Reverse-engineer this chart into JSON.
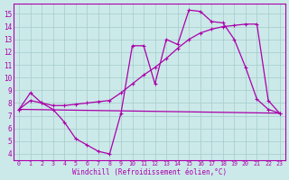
{
  "background_color": "#cce9e9",
  "grid_color": "#aacfcf",
  "line_color": "#aa00aa",
  "xlim": [
    -0.5,
    23.5
  ],
  "ylim": [
    3.5,
    15.8
  ],
  "xticks": [
    0,
    1,
    2,
    3,
    4,
    5,
    6,
    7,
    8,
    9,
    10,
    11,
    12,
    13,
    14,
    15,
    16,
    17,
    18,
    19,
    20,
    21,
    22,
    23
  ],
  "yticks": [
    4,
    5,
    6,
    7,
    8,
    9,
    10,
    11,
    12,
    13,
    14,
    15
  ],
  "xlabel": "Windchill (Refroidissement éolien,°C)",
  "series_wavy": [
    [
      0,
      7.5
    ],
    [
      1,
      8.8
    ],
    [
      2,
      8.0
    ],
    [
      3,
      7.5
    ],
    [
      4,
      6.5
    ],
    [
      5,
      5.2
    ],
    [
      6,
      4.7
    ],
    [
      7,
      4.2
    ],
    [
      8,
      4.0
    ],
    [
      9,
      7.2
    ],
    [
      10,
      12.5
    ],
    [
      11,
      12.5
    ],
    [
      12,
      9.5
    ],
    [
      13,
      13.0
    ],
    [
      14,
      12.6
    ],
    [
      15,
      15.3
    ],
    [
      16,
      15.2
    ],
    [
      17,
      14.4
    ],
    [
      18,
      14.3
    ],
    [
      19,
      13.0
    ],
    [
      20,
      10.8
    ],
    [
      21,
      8.3
    ],
    [
      22,
      7.5
    ],
    [
      23,
      7.2
    ]
  ],
  "series_mid": [
    [
      0,
      7.5
    ],
    [
      1,
      8.2
    ],
    [
      2,
      8.0
    ],
    [
      3,
      7.8
    ],
    [
      4,
      7.8
    ],
    [
      5,
      7.9
    ],
    [
      6,
      8.0
    ],
    [
      7,
      8.1
    ],
    [
      8,
      8.2
    ],
    [
      9,
      8.8
    ],
    [
      10,
      9.5
    ],
    [
      11,
      10.2
    ],
    [
      12,
      10.8
    ],
    [
      13,
      11.5
    ],
    [
      14,
      12.3
    ],
    [
      15,
      13.0
    ],
    [
      16,
      13.5
    ],
    [
      17,
      13.8
    ],
    [
      18,
      14.0
    ],
    [
      19,
      14.1
    ],
    [
      20,
      14.2
    ],
    [
      21,
      14.2
    ],
    [
      22,
      8.2
    ],
    [
      23,
      7.2
    ]
  ],
  "series_flat": [
    [
      0,
      7.5
    ],
    [
      23,
      7.2
    ]
  ]
}
